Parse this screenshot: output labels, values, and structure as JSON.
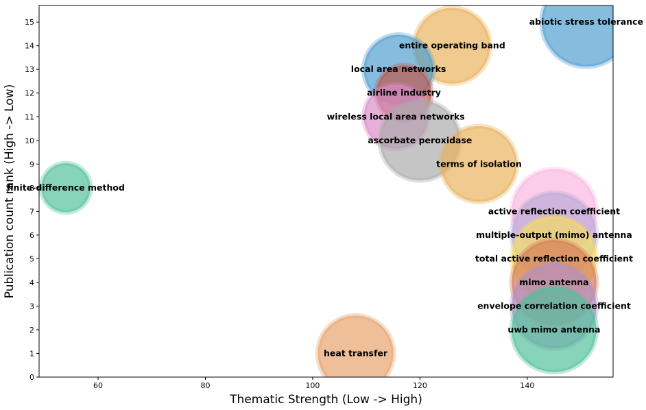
{
  "chart_data": {
    "type": "scatter",
    "title": "",
    "xlabel": "Thematic Strength (Low -> High)",
    "ylabel": "Publication count rank (High -> Low)",
    "xlim": [
      49,
      156
    ],
    "ylim": [
      0,
      15.7
    ],
    "xticks": [
      60,
      80,
      100,
      120,
      140
    ],
    "yticks": [
      0,
      1,
      2,
      3,
      4,
      5,
      6,
      7,
      8,
      9,
      10,
      11,
      12,
      13,
      14,
      15
    ],
    "grid": false,
    "points": [
      {
        "label": "abiotic stress tolerance",
        "x": 151,
        "y": 15,
        "size": 1.0,
        "color": "#4c9ccf"
      },
      {
        "label": "entire operating band",
        "x": 126,
        "y": 14,
        "size": 0.85,
        "color": "#e9b15a"
      },
      {
        "label": "local area networks",
        "x": 116,
        "y": 13,
        "size": 0.78,
        "color": "#4c9ccf"
      },
      {
        "label": "airline industry",
        "x": 117,
        "y": 12,
        "size": 0.62,
        "color": "#c0564a"
      },
      {
        "label": "wireless local area networks",
        "x": 115.5,
        "y": 11,
        "size": 0.72,
        "color": "#d98cc8"
      },
      {
        "label": "ascorbate peroxidase",
        "x": 120,
        "y": 10,
        "size": 0.9,
        "color": "#aaaaaa"
      },
      {
        "label": "terms of isolation",
        "x": 131,
        "y": 9,
        "size": 0.85,
        "color": "#e9b15a"
      },
      {
        "label": "finite-difference method",
        "x": 54,
        "y": 8,
        "size": 0.55,
        "color": "#4fc09a"
      },
      {
        "label": "active reflection coefficient",
        "x": 145,
        "y": 7,
        "size": 0.95,
        "color": "#f9b6e0"
      },
      {
        "label": "multiple-output (mimo) antenna",
        "x": 145,
        "y": 6,
        "size": 0.95,
        "color": "#b9a8d8"
      },
      {
        "label": "total active reflection coefficient",
        "x": 145,
        "y": 5,
        "size": 0.95,
        "color": "#f3dc5f"
      },
      {
        "label": "mimo antenna",
        "x": 145,
        "y": 4,
        "size": 0.95,
        "color": "#d47a55"
      },
      {
        "label": "envelope correlation coefficient",
        "x": 145,
        "y": 3,
        "size": 0.95,
        "color": "#b38fc8"
      },
      {
        "label": "uwb mimo antenna",
        "x": 145,
        "y": 2,
        "size": 0.95,
        "color": "#4fc09a"
      },
      {
        "label": "heat transfer",
        "x": 108,
        "y": 1,
        "size": 0.85,
        "color": "#e8a06a"
      }
    ]
  }
}
